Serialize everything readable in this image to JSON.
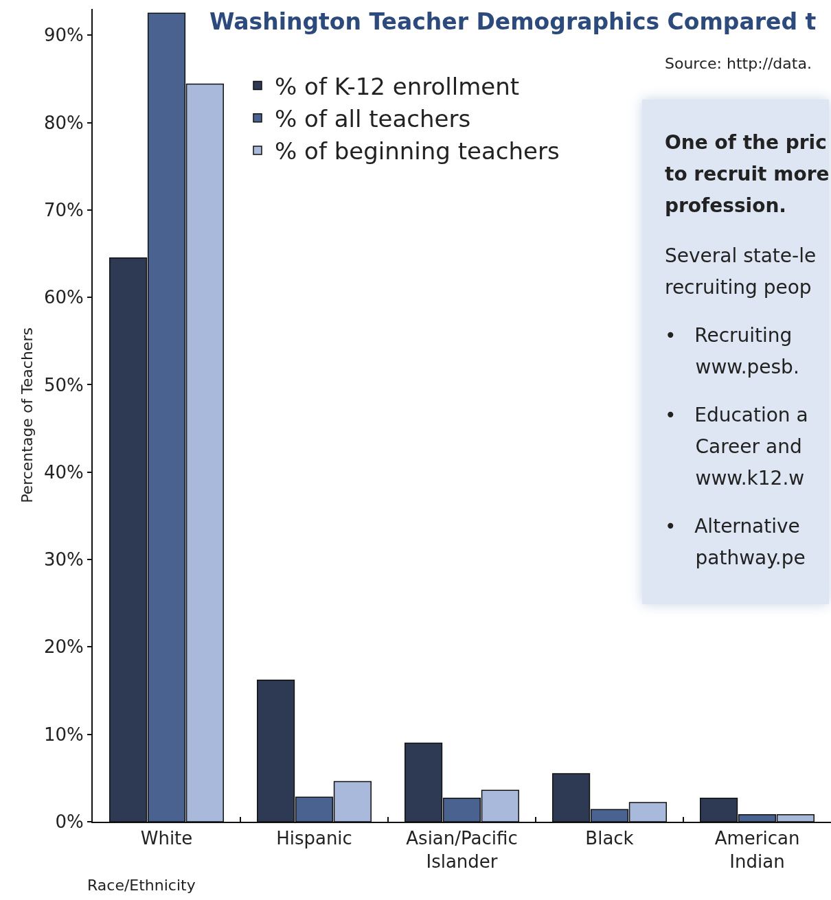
{
  "chart_data": {
    "type": "bar",
    "title": "Washington Teacher Demographics Compared t",
    "xlabel": "Race/Ethnicity",
    "ylabel": "Percentage of Teachers",
    "categories": [
      "White",
      "Hispanic",
      "Asian/Pacific\nIslander",
      "Black",
      "American\nIndian"
    ],
    "series": [
      {
        "name": "% of K-12 enrollment",
        "color": "#2e3a54",
        "values": [
          64.5,
          16.2,
          9.0,
          5.5,
          2.7
        ]
      },
      {
        "name": "% of all teachers",
        "color": "#4a6290",
        "values": [
          92.5,
          2.8,
          2.7,
          1.4,
          0.8
        ]
      },
      {
        "name": "% of beginning teachers",
        "color": "#a8b9dc",
        "values": [
          84.4,
          4.6,
          3.6,
          2.2,
          0.8
        ]
      }
    ],
    "ylim": [
      0,
      93
    ],
    "yticks": [
      {
        "value": 0,
        "label": "0%"
      },
      {
        "value": 10,
        "label": "10%"
      },
      {
        "value": 20,
        "label": "20%"
      },
      {
        "value": 30,
        "label": "30%"
      },
      {
        "value": 40,
        "label": "40%"
      },
      {
        "value": 50,
        "label": "50%"
      },
      {
        "value": 60,
        "label": "60%"
      },
      {
        "value": 70,
        "label": "70%"
      },
      {
        "value": 80,
        "label": "80%"
      },
      {
        "value": 90,
        "label": "90%"
      }
    ],
    "grid": false,
    "legend": "top left",
    "annotations": [
      "Source: http://data.",
      "One of the pric\nto recruit more\nprofession.",
      "Several state-le\nrecruiting peop",
      "•   Recruiting \n     www.pesb.",
      "•   Education a\n     Career and\n     www.k12.w",
      "•   Alternative\n     pathway.pe"
    ]
  }
}
